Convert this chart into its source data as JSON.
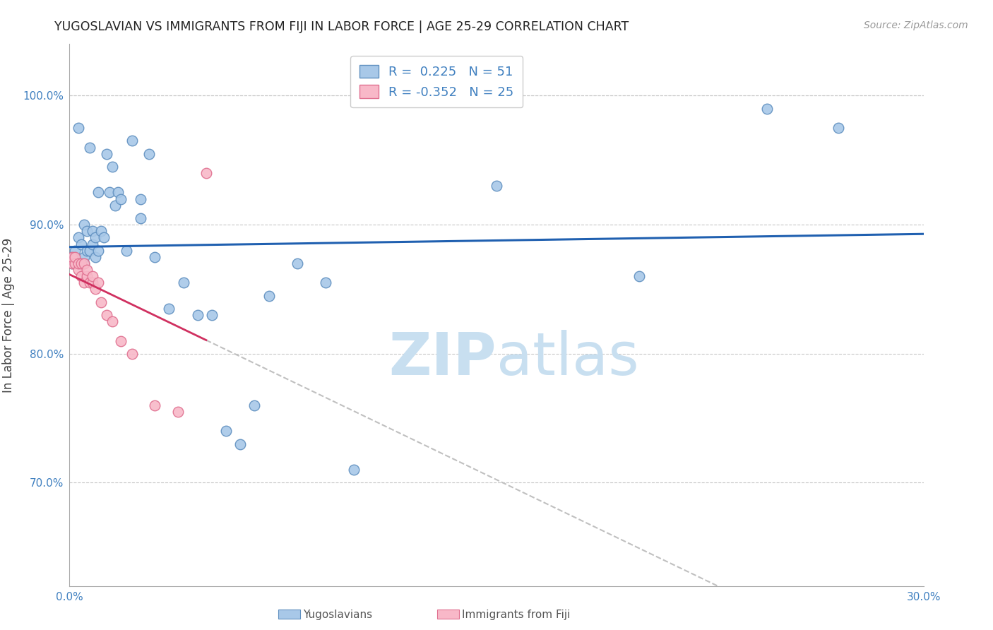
{
  "title": "YUGOSLAVIAN VS IMMIGRANTS FROM FIJI IN LABOR FORCE | AGE 25-29 CORRELATION CHART",
  "source": "Source: ZipAtlas.com",
  "ylabel": "In Labor Force | Age 25-29",
  "r_yugoslavian": 0.225,
  "n_yugoslavian": 51,
  "r_fiji": -0.352,
  "n_fiji": 25,
  "xlim": [
    0.0,
    0.3
  ],
  "ylim": [
    0.62,
    1.04
  ],
  "yticks": [
    1.0,
    0.9,
    0.8,
    0.7
  ],
  "xticks": [
    0.0,
    0.05,
    0.1,
    0.15,
    0.2,
    0.25,
    0.3
  ],
  "ytick_labels": [
    "100.0%",
    "90.0%",
    "80.0%",
    "70.0%"
  ],
  "xtick_labels": [
    "0.0%",
    "",
    "",
    "",
    "",
    "",
    "30.0%"
  ],
  "background_color": "#ffffff",
  "grid_color": "#c8c8c8",
  "blue_scatter_color": "#a8c8e8",
  "blue_scatter_edge": "#6090c0",
  "pink_scatter_color": "#f8b8c8",
  "pink_scatter_edge": "#e07090",
  "line_blue": "#2060b0",
  "line_pink": "#d03060",
  "line_gray": "#c0c0c0",
  "axis_color": "#4080c0",
  "watermark_color": "#c8dff0",
  "legend_bottom": [
    "Yugoslavians",
    "Immigrants from Fiji"
  ],
  "yugoslavian_x": [
    0.001,
    0.001,
    0.002,
    0.002,
    0.003,
    0.003,
    0.003,
    0.004,
    0.004,
    0.005,
    0.005,
    0.005,
    0.006,
    0.006,
    0.007,
    0.007,
    0.008,
    0.008,
    0.009,
    0.009,
    0.01,
    0.01,
    0.011,
    0.012,
    0.013,
    0.014,
    0.015,
    0.016,
    0.017,
    0.018,
    0.02,
    0.022,
    0.025,
    0.025,
    0.028,
    0.03,
    0.035,
    0.04,
    0.045,
    0.05,
    0.055,
    0.06,
    0.065,
    0.07,
    0.08,
    0.09,
    0.1,
    0.15,
    0.2,
    0.245,
    0.27
  ],
  "yugoslavian_y": [
    0.87,
    0.875,
    0.875,
    0.88,
    0.87,
    0.89,
    0.975,
    0.87,
    0.885,
    0.87,
    0.875,
    0.9,
    0.88,
    0.895,
    0.88,
    0.96,
    0.885,
    0.895,
    0.875,
    0.89,
    0.88,
    0.925,
    0.895,
    0.89,
    0.955,
    0.925,
    0.945,
    0.915,
    0.925,
    0.92,
    0.88,
    0.965,
    0.905,
    0.92,
    0.955,
    0.875,
    0.835,
    0.855,
    0.83,
    0.83,
    0.74,
    0.73,
    0.76,
    0.845,
    0.87,
    0.855,
    0.71,
    0.93,
    0.86,
    0.99,
    0.975
  ],
  "fiji_x": [
    0.001,
    0.001,
    0.002,
    0.002,
    0.003,
    0.003,
    0.004,
    0.004,
    0.005,
    0.005,
    0.006,
    0.006,
    0.007,
    0.008,
    0.008,
    0.009,
    0.01,
    0.011,
    0.013,
    0.015,
    0.018,
    0.022,
    0.03,
    0.038,
    0.048
  ],
  "fiji_y": [
    0.87,
    0.875,
    0.87,
    0.875,
    0.865,
    0.87,
    0.86,
    0.87,
    0.855,
    0.87,
    0.86,
    0.865,
    0.855,
    0.855,
    0.86,
    0.85,
    0.855,
    0.84,
    0.83,
    0.825,
    0.81,
    0.8,
    0.76,
    0.755,
    0.94
  ]
}
